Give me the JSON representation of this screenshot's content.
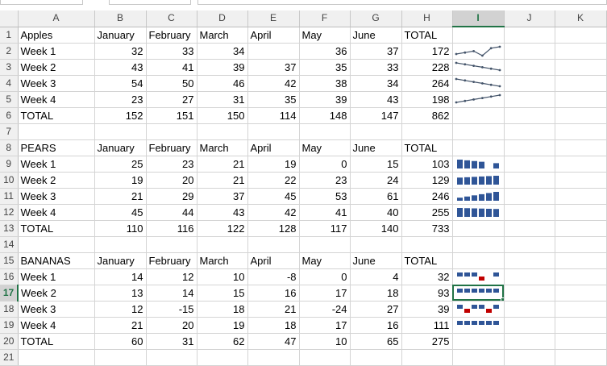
{
  "columns": [
    "A",
    "B",
    "C",
    "D",
    "E",
    "F",
    "G",
    "H",
    "I",
    "J",
    "K"
  ],
  "selected_column": "I",
  "selected_row": 17,
  "active_cell": "I17",
  "colors": {
    "line_sparkline": "#44546a",
    "column_sparkline": "#2f5597",
    "negative_point": "#c00000",
    "selection": "#217346"
  },
  "rows": [
    {
      "n": 1,
      "cells": [
        "Apples",
        "January",
        "February",
        "March",
        "April",
        "May",
        "June",
        "TOTAL",
        "",
        "",
        ""
      ]
    },
    {
      "n": 2,
      "cells": [
        "Week 1",
        "32",
        "33",
        "34",
        "",
        "36",
        "37",
        "172",
        "",
        "",
        ""
      ]
    },
    {
      "n": 3,
      "cells": [
        "Week 2",
        "43",
        "41",
        "39",
        "37",
        "35",
        "33",
        "228",
        "",
        "",
        ""
      ]
    },
    {
      "n": 4,
      "cells": [
        "Week 3",
        "54",
        "50",
        "46",
        "42",
        "38",
        "34",
        "264",
        "",
        "",
        ""
      ]
    },
    {
      "n": 5,
      "cells": [
        "Week 4",
        "23",
        "27",
        "31",
        "35",
        "39",
        "43",
        "198",
        "",
        "",
        ""
      ]
    },
    {
      "n": 6,
      "cells": [
        "TOTAL",
        "152",
        "151",
        "150",
        "114",
        "148",
        "147",
        "862",
        "",
        "",
        ""
      ]
    },
    {
      "n": 7,
      "cells": [
        "",
        "",
        "",
        "",
        "",
        "",
        "",
        "",
        "",
        "",
        ""
      ]
    },
    {
      "n": 8,
      "cells": [
        "PEARS",
        "January",
        "February",
        "March",
        "April",
        "May",
        "June",
        "TOTAL",
        "",
        "",
        ""
      ]
    },
    {
      "n": 9,
      "cells": [
        "Week 1",
        "25",
        "23",
        "21",
        "19",
        "0",
        "15",
        "103",
        "",
        "",
        ""
      ]
    },
    {
      "n": 10,
      "cells": [
        "Week 2",
        "19",
        "20",
        "21",
        "22",
        "23",
        "24",
        "129",
        "",
        "",
        ""
      ]
    },
    {
      "n": 11,
      "cells": [
        "Week 3",
        "21",
        "29",
        "37",
        "45",
        "53",
        "61",
        "246",
        "",
        "",
        ""
      ]
    },
    {
      "n": 12,
      "cells": [
        "Week 4",
        "45",
        "44",
        "43",
        "42",
        "41",
        "40",
        "255",
        "",
        "",
        ""
      ]
    },
    {
      "n": 13,
      "cells": [
        "TOTAL",
        "110",
        "116",
        "122",
        "128",
        "117",
        "140",
        "733",
        "",
        "",
        ""
      ]
    },
    {
      "n": 14,
      "cells": [
        "",
        "",
        "",
        "",
        "",
        "",
        "",
        "",
        "",
        "",
        ""
      ]
    },
    {
      "n": 15,
      "cells": [
        "BANANAS",
        "January",
        "February",
        "March",
        "April",
        "May",
        "June",
        "TOTAL",
        "",
        "",
        ""
      ]
    },
    {
      "n": 16,
      "cells": [
        "Week 1",
        "14",
        "12",
        "10",
        "-8",
        "0",
        "4",
        "32",
        "",
        "",
        ""
      ]
    },
    {
      "n": 17,
      "cells": [
        "Week 2",
        "13",
        "14",
        "15",
        "16",
        "17",
        "18",
        "93",
        "",
        "",
        ""
      ]
    },
    {
      "n": 18,
      "cells": [
        "Week 3",
        "12",
        "-15",
        "18",
        "21",
        "-24",
        "27",
        "39",
        "",
        "",
        ""
      ]
    },
    {
      "n": 19,
      "cells": [
        "Week 4",
        "21",
        "20",
        "19",
        "18",
        "17",
        "16",
        "111",
        "",
        "",
        ""
      ]
    },
    {
      "n": 20,
      "cells": [
        "TOTAL",
        "60",
        "31",
        "62",
        "47",
        "10",
        "65",
        "275",
        "",
        "",
        ""
      ]
    },
    {
      "n": 21,
      "cells": [
        "",
        "",
        "",
        "",
        "",
        "",
        "",
        "",
        "",
        "",
        ""
      ]
    }
  ],
  "sparklines": [
    {
      "row": 2,
      "type": "line",
      "values": [
        32,
        33,
        34,
        null,
        36,
        37
      ]
    },
    {
      "row": 3,
      "type": "line",
      "values": [
        43,
        41,
        39,
        37,
        35,
        33
      ]
    },
    {
      "row": 4,
      "type": "line",
      "values": [
        54,
        50,
        46,
        42,
        38,
        34
      ]
    },
    {
      "row": 5,
      "type": "line",
      "values": [
        23,
        27,
        31,
        35,
        39,
        43
      ]
    },
    {
      "row": 9,
      "type": "column",
      "values": [
        25,
        23,
        21,
        19,
        0,
        15
      ]
    },
    {
      "row": 10,
      "type": "column",
      "values": [
        19,
        20,
        21,
        22,
        23,
        24
      ]
    },
    {
      "row": 11,
      "type": "column",
      "values": [
        21,
        29,
        37,
        45,
        53,
        61
      ]
    },
    {
      "row": 12,
      "type": "column",
      "values": [
        45,
        44,
        43,
        42,
        41,
        40
      ]
    },
    {
      "row": 16,
      "type": "winloss",
      "values": [
        14,
        12,
        10,
        -8,
        0,
        4
      ]
    },
    {
      "row": 17,
      "type": "winloss",
      "values": [
        13,
        14,
        15,
        16,
        17,
        18
      ]
    },
    {
      "row": 18,
      "type": "winloss",
      "values": [
        12,
        -15,
        18,
        21,
        -24,
        27
      ]
    },
    {
      "row": 19,
      "type": "winloss",
      "values": [
        21,
        20,
        19,
        18,
        17,
        16
      ]
    }
  ]
}
